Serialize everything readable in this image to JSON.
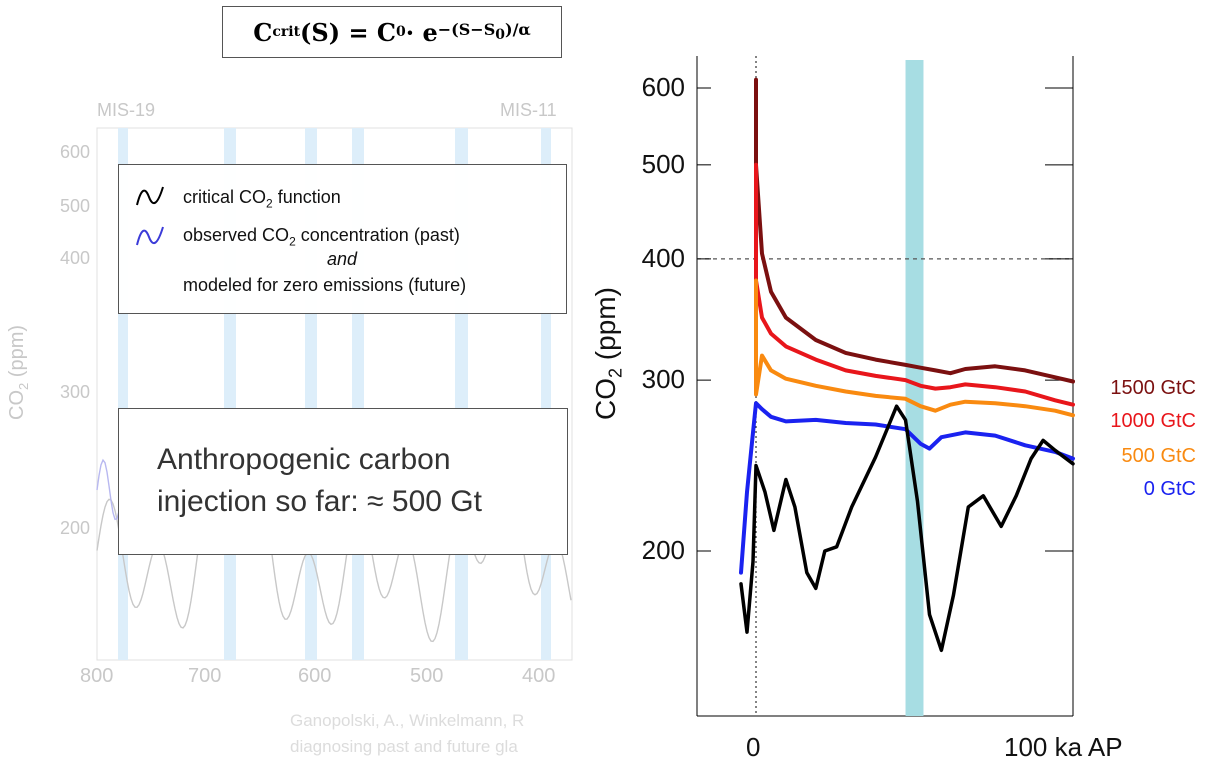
{
  "formula": {
    "lhs": "C",
    "lhs_sub": "crit",
    "arg": "(S) = C",
    "c0_sub": "0",
    "dot": " · e",
    "exponent": "−(S−S",
    "exp_sub": "0",
    "exponent_end": ")/α"
  },
  "left_panel": {
    "mis_labels": [
      "MIS-19",
      "MIS-11"
    ],
    "y_ticks": [
      "600",
      "500",
      "400",
      "300",
      "200"
    ],
    "x_ticks": [
      "800",
      "700",
      "600",
      "500",
      "400"
    ],
    "ylabel": "CO",
    "ylabel_sub": "2",
    "ylabel_unit": " (ppm)",
    "citation_lines": [
      "Ganopolski, A., Winkelmann, R",
      "diagnosing past and future gla"
    ]
  },
  "legend": {
    "critical_prefix": "critical CO",
    "critical_sub": "2",
    "critical_suffix": " function",
    "observed_prefix": "observed CO",
    "observed_sub": "2",
    "observed_suffix": " concentration (past)",
    "and": "and",
    "modeled": "modeled for zero emissions (future)"
  },
  "anthro": {
    "line1": "Anthropogenic carbon",
    "line2": "injection so far: ≈ 500 Gt"
  },
  "right_panel": {
    "ylabel": "CO",
    "ylabel_sub": "2",
    "ylabel_unit": " (ppm)",
    "y_ticks": [
      "600",
      "500",
      "400",
      "300",
      "200"
    ],
    "x_tick_0": "0",
    "x_tick_100": "100 ka AP"
  },
  "chart_data": {
    "type": "line",
    "x_unit": "ka AP",
    "y_unit": "ppm",
    "y_scale": "log",
    "ylim": [
      150,
      640
    ],
    "xlim": [
      -5,
      110
    ],
    "reference_line_y": 400,
    "reference_line_x": 0,
    "highlight_band_x": [
      50,
      56
    ],
    "series": [
      {
        "name": "1500 GtC",
        "color": "#7b1010",
        "points": [
          [
            0,
            612
          ],
          [
            0,
            500
          ],
          [
            2,
            405
          ],
          [
            5,
            370
          ],
          [
            10,
            348
          ],
          [
            20,
            330
          ],
          [
            30,
            320
          ],
          [
            40,
            315
          ],
          [
            50,
            311
          ],
          [
            55,
            309
          ],
          [
            60,
            307
          ],
          [
            65,
            305
          ],
          [
            70,
            308
          ],
          [
            80,
            310
          ],
          [
            90,
            307
          ],
          [
            100,
            302
          ],
          [
            106,
            299
          ]
        ]
      },
      {
        "name": "1000 GtC",
        "color": "#e8161b",
        "points": [
          [
            0,
            500
          ],
          [
            0,
            380
          ],
          [
            2,
            348
          ],
          [
            5,
            335
          ],
          [
            10,
            325
          ],
          [
            20,
            315
          ],
          [
            30,
            307
          ],
          [
            40,
            303
          ],
          [
            50,
            300
          ],
          [
            55,
            296
          ],
          [
            60,
            294
          ],
          [
            65,
            295
          ],
          [
            70,
            297
          ],
          [
            80,
            295
          ],
          [
            90,
            292
          ],
          [
            100,
            286
          ],
          [
            106,
            283
          ]
        ]
      },
      {
        "name": "500 GtC",
        "color": "#f98a10",
        "points": [
          [
            0,
            380
          ],
          [
            0,
            290
          ],
          [
            2,
            318
          ],
          [
            5,
            307
          ],
          [
            10,
            301
          ],
          [
            20,
            296
          ],
          [
            30,
            292
          ],
          [
            40,
            289
          ],
          [
            50,
            287
          ],
          [
            55,
            282
          ],
          [
            60,
            279
          ],
          [
            65,
            283
          ],
          [
            70,
            285
          ],
          [
            80,
            284
          ],
          [
            90,
            282
          ],
          [
            100,
            279
          ],
          [
            106,
            276
          ]
        ]
      },
      {
        "name": "0 GtC",
        "color": "#1a22f0",
        "points": [
          [
            -5,
            190
          ],
          [
            -3,
            230
          ],
          [
            -1,
            265
          ],
          [
            0,
            284
          ],
          [
            2,
            280
          ],
          [
            5,
            275
          ],
          [
            10,
            272
          ],
          [
            20,
            273
          ],
          [
            30,
            271
          ],
          [
            40,
            270
          ],
          [
            50,
            267
          ],
          [
            55,
            258
          ],
          [
            58,
            255
          ],
          [
            62,
            262
          ],
          [
            70,
            265
          ],
          [
            80,
            263
          ],
          [
            90,
            257
          ],
          [
            100,
            253
          ],
          [
            106,
            249
          ]
        ]
      },
      {
        "name": "critical CO2",
        "color": "#000000",
        "points": [
          [
            -5,
            185
          ],
          [
            -3,
            165
          ],
          [
            -1,
            195
          ],
          [
            0,
            245
          ],
          [
            3,
            230
          ],
          [
            6,
            210
          ],
          [
            10,
            237
          ],
          [
            13,
            222
          ],
          [
            17,
            190
          ],
          [
            20,
            183
          ],
          [
            23,
            200
          ],
          [
            27,
            202
          ],
          [
            32,
            222
          ],
          [
            40,
            250
          ],
          [
            47,
            282
          ],
          [
            50,
            273
          ],
          [
            54,
            225
          ],
          [
            58,
            172
          ],
          [
            62,
            158
          ],
          [
            66,
            180
          ],
          [
            71,
            222
          ],
          [
            76,
            228
          ],
          [
            82,
            212
          ],
          [
            87,
            228
          ],
          [
            92,
            249
          ],
          [
            96,
            260
          ],
          [
            100,
            254
          ],
          [
            106,
            246
          ]
        ]
      }
    ]
  }
}
